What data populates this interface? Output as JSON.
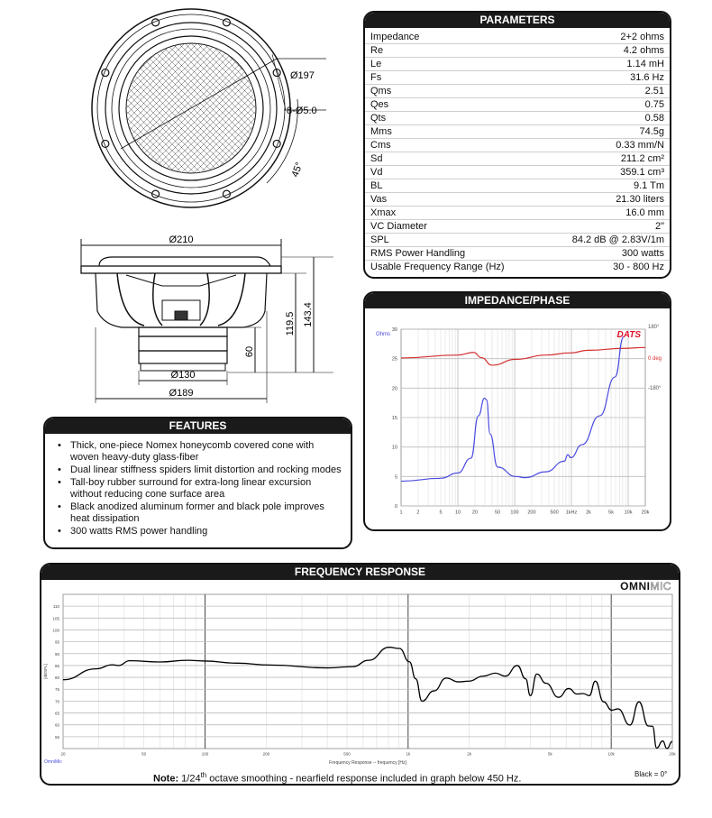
{
  "drawing": {
    "front": {
      "diameter_label": "Ø197",
      "holes_label": "8-Ø5.0",
      "angle_label": "45°"
    },
    "side": {
      "overall_diameter": "Ø210",
      "magnet_diameter": "Ø130",
      "basket_diameter": "Ø189",
      "height_total": "143.4",
      "height_mount": "119.5",
      "magnet_height": "60"
    }
  },
  "parameters": {
    "title": "PARAMETERS",
    "rows": [
      {
        "label": "Impedance",
        "value": "2+2 ohms"
      },
      {
        "label": "Re",
        "value": "4.2 ohms"
      },
      {
        "label": "Le",
        "value": "1.14 mH"
      },
      {
        "label": "Fs",
        "value": "31.6 Hz"
      },
      {
        "label": "Qms",
        "value": "2.51"
      },
      {
        "label": "Qes",
        "value": "0.75"
      },
      {
        "label": "Qts",
        "value": "0.58"
      },
      {
        "label": "Mms",
        "value": "74.5g"
      },
      {
        "label": "Cms",
        "value": "0.33 mm/N"
      },
      {
        "label": "Sd",
        "value": "211.2 cm²"
      },
      {
        "label": "Vd",
        "value": "359.1 cm³"
      },
      {
        "label": "BL",
        "value": "9.1 Tm"
      },
      {
        "label": "Vas",
        "value": "21.30 liters"
      },
      {
        "label": "Xmax",
        "value": "16.0 mm"
      },
      {
        "label": "VC Diameter",
        "value": "2\""
      },
      {
        "label": "SPL",
        "value": "84.2 dB @ 2.83V/1m"
      },
      {
        "label": "RMS Power Handling",
        "value": "300 watts"
      },
      {
        "label": "Usable Frequency Range (Hz)",
        "value": "30 - 800 Hz"
      }
    ]
  },
  "features": {
    "title": "FEATURES",
    "items": [
      "Thick, one-piece Nomex honeycomb covered cone with woven heavy-duty glass-fiber",
      "Dual linear stiffness spiders limit distortion and rocking modes",
      "Tall-boy rubber surround for extra-long linear excursion without reducing cone surface area",
      "Black anodized aluminum former and black pole improves heat dissipation",
      "300 watts RMS power handling"
    ]
  },
  "impedance": {
    "title": "IMPEDANCE/PHASE",
    "brand": "DATS",
    "left_unit": "Ohms",
    "right_labels": [
      "180°",
      "0 deg",
      "-180°"
    ],
    "colors": {
      "impedance": "#4a4ae0",
      "phase": "#d43030",
      "brand": "#e0102a"
    }
  },
  "frequency": {
    "title": "FREQUENCY RESPONSE",
    "brand_bold": "OMNI",
    "brand_light": "MIC",
    "xlabel": "Frequency Response -- frequency [Hz]",
    "ylabel": "[dBSPL]",
    "footer_left": "OmniMic",
    "legend": "Black = 0°",
    "note_bold": "Note:",
    "note_pre": " 1/24",
    "note_sup": "th",
    "note_post": " octave smoothing - nearfield response included in graph below 450 Hz."
  },
  "chart_data": [
    {
      "type": "line",
      "title": "IMPEDANCE/PHASE",
      "xscale": "log",
      "xlim": [
        1,
        20000
      ],
      "ylim": [
        0,
        30
      ],
      "ylabel": "Ohms",
      "xticks": [
        1,
        2,
        5,
        10,
        20,
        50,
        100,
        200,
        500,
        1000,
        2000,
        5000,
        10000,
        20000
      ],
      "xtick_labels": [
        "1",
        "2",
        "5",
        "10",
        "20",
        "50",
        "100",
        "200",
        "500",
        "1kHz",
        "2k",
        "5k",
        "10k",
        "20k"
      ],
      "yticks": [
        0,
        5,
        10,
        15,
        20,
        25,
        30
      ],
      "y2ticks": [
        180,
        0,
        -180
      ],
      "y2lim": [
        -360,
        180
      ],
      "grid": true,
      "series": [
        {
          "name": "Ohms",
          "axis": "left",
          "x": [
            1,
            5,
            10,
            17,
            23,
            29.5,
            32,
            37,
            50,
            105,
            152,
            356,
            750,
            863,
            975,
            1530,
            3150,
            5860,
            8300
          ],
          "y": [
            4.2,
            4.7,
            5.6,
            8.1,
            15.3,
            18.3,
            18,
            12.2,
            6.6,
            5.0,
            4.8,
            5.8,
            7.6,
            8.7,
            8.2,
            10.4,
            15.3,
            21.9,
            28.7
          ]
        },
        {
          "name": "deg",
          "axis": "right",
          "x": [
            1,
            10,
            19,
            26,
            40,
            105,
            356,
            950,
            1980,
            8500,
            20000
          ],
          "y": [
            4,
            22,
            38,
            6,
            -40,
            -4,
            22,
            35,
            51,
            63,
            68
          ]
        }
      ]
    },
    {
      "type": "line",
      "title": "FREQUENCY RESPONSE",
      "xscale": "log",
      "xlim": [
        20,
        20000
      ],
      "ylim": [
        50,
        115
      ],
      "xlabel": "Frequency Response -- frequency [Hz]",
      "ylabel": "[dBSPL]",
      "xticks": [
        20,
        50,
        100,
        200,
        500,
        1000,
        2000,
        5000,
        10000,
        20000
      ],
      "xtick_labels": [
        "20",
        "50",
        "100",
        "200",
        "500",
        "1k",
        "2k",
        "5k",
        "10k",
        "20k"
      ],
      "yticks": [
        55,
        60,
        65,
        70,
        75,
        80,
        85,
        90,
        95,
        100,
        105,
        110
      ],
      "grid": true,
      "series": [
        {
          "x": [
            20,
            29,
            35,
            37.5,
            42.5,
            60,
            82,
            99,
            144,
            209,
            402,
            532,
            640,
            806,
            905,
            1015,
            1090,
            1170,
            1340,
            1540,
            1770,
            1990,
            2340,
            2690,
            3010,
            3450,
            3790,
            4000,
            4300,
            4780,
            5500,
            6180,
            6780,
            7270,
            7800,
            8350,
            9170,
            10060,
            10800,
            12370,
            13700,
            15230,
            15980,
            16730,
            17940,
            18800,
            20000
          ],
          "y": [
            79,
            83.6,
            85.3,
            85,
            87,
            86.5,
            87.2,
            86.9,
            86,
            85.2,
            84,
            84.5,
            87.2,
            92.7,
            92.2,
            86.6,
            79.4,
            70,
            74.3,
            79.7,
            78.1,
            78.4,
            80.5,
            81.8,
            80.5,
            85,
            79.4,
            72.3,
            81.4,
            77.5,
            71.6,
            75.3,
            73,
            73.2,
            72.3,
            78.4,
            69.7,
            66.2,
            66.7,
            59.9,
            69.7,
            59.5,
            59.4,
            50.2,
            53.2,
            50,
            53
          ]
        }
      ]
    }
  ]
}
